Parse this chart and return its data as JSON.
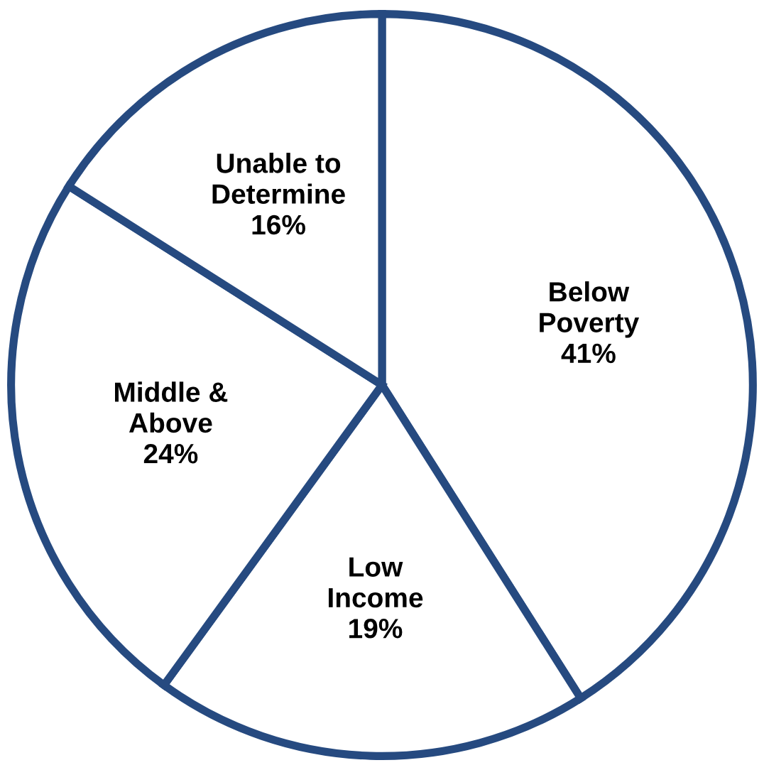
{
  "chart_data": {
    "type": "pie",
    "categories": [
      "Below\nPoverty",
      "Low\nIncome",
      "Middle &\nAbove",
      "Unable to\nDetermine"
    ],
    "values": [
      41,
      19,
      24,
      16
    ],
    "value_labels": [
      "41%",
      "19%",
      "24%",
      "16%"
    ],
    "colors": [
      "#ffffff",
      "#ffffff",
      "#ffffff",
      "#ffffff"
    ]
  }
}
